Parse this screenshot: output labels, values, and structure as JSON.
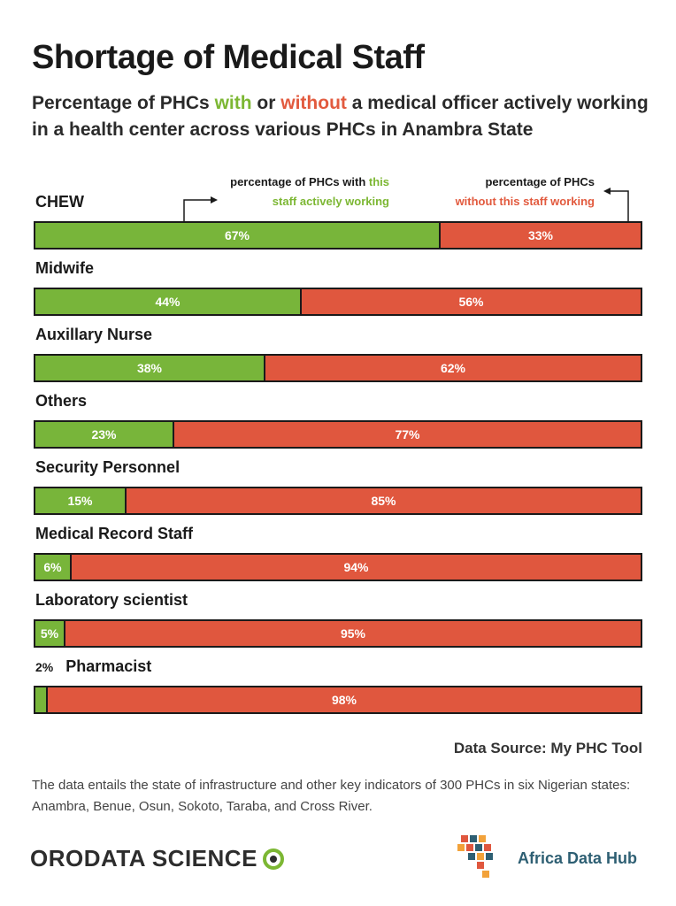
{
  "title": "Shortage of Medical Staff",
  "subtitle": {
    "part1": "Percentage of PHCs ",
    "with": "with",
    "part2": " or ",
    "without": "without",
    "part3": " a medical officer actively working in a health center across various PHCs in Anambra State"
  },
  "annotations": {
    "left_line1_a": "percentage of PHCs with ",
    "left_line1_b": "this",
    "left_line2": "staff actively working",
    "right_line1": "percentage of PHCs",
    "right_line2": "without this staff working"
  },
  "chart_data": {
    "type": "bar",
    "orientation": "horizontal",
    "stacked": true,
    "categories": [
      "CHEW",
      "Midwife",
      "Auxillary Nurse",
      "Others",
      "Security Personnel",
      "Medical Record Staff",
      "Laboratory scientist",
      "Pharmacist"
    ],
    "series": [
      {
        "name": "with",
        "values": [
          67,
          44,
          38,
          23,
          15,
          6,
          5,
          2
        ],
        "labels": [
          "67%",
          "44%",
          "38%",
          "23%",
          "15%",
          "6%",
          "5%",
          "2%"
        ]
      },
      {
        "name": "without",
        "values": [
          33,
          56,
          62,
          77,
          85,
          94,
          95,
          98
        ],
        "labels": [
          "33%",
          "56%",
          "62%",
          "77%",
          "85%",
          "94%",
          "95%",
          "98%"
        ]
      }
    ],
    "xlim": [
      0,
      100
    ],
    "colors": {
      "with": "#78b53a",
      "without": "#e0573e"
    }
  },
  "source": "Data Source: My PHC Tool",
  "note": "The data entails the state of infrastructure and other key indicators of 300 PHCs in six Nigerian states: Anambra, Benue, Osun, Sokoto, Taraba, and Cross River.",
  "logos": {
    "orodata": "ORODATA SCIENCE",
    "africa": "Africa Data Hub"
  }
}
